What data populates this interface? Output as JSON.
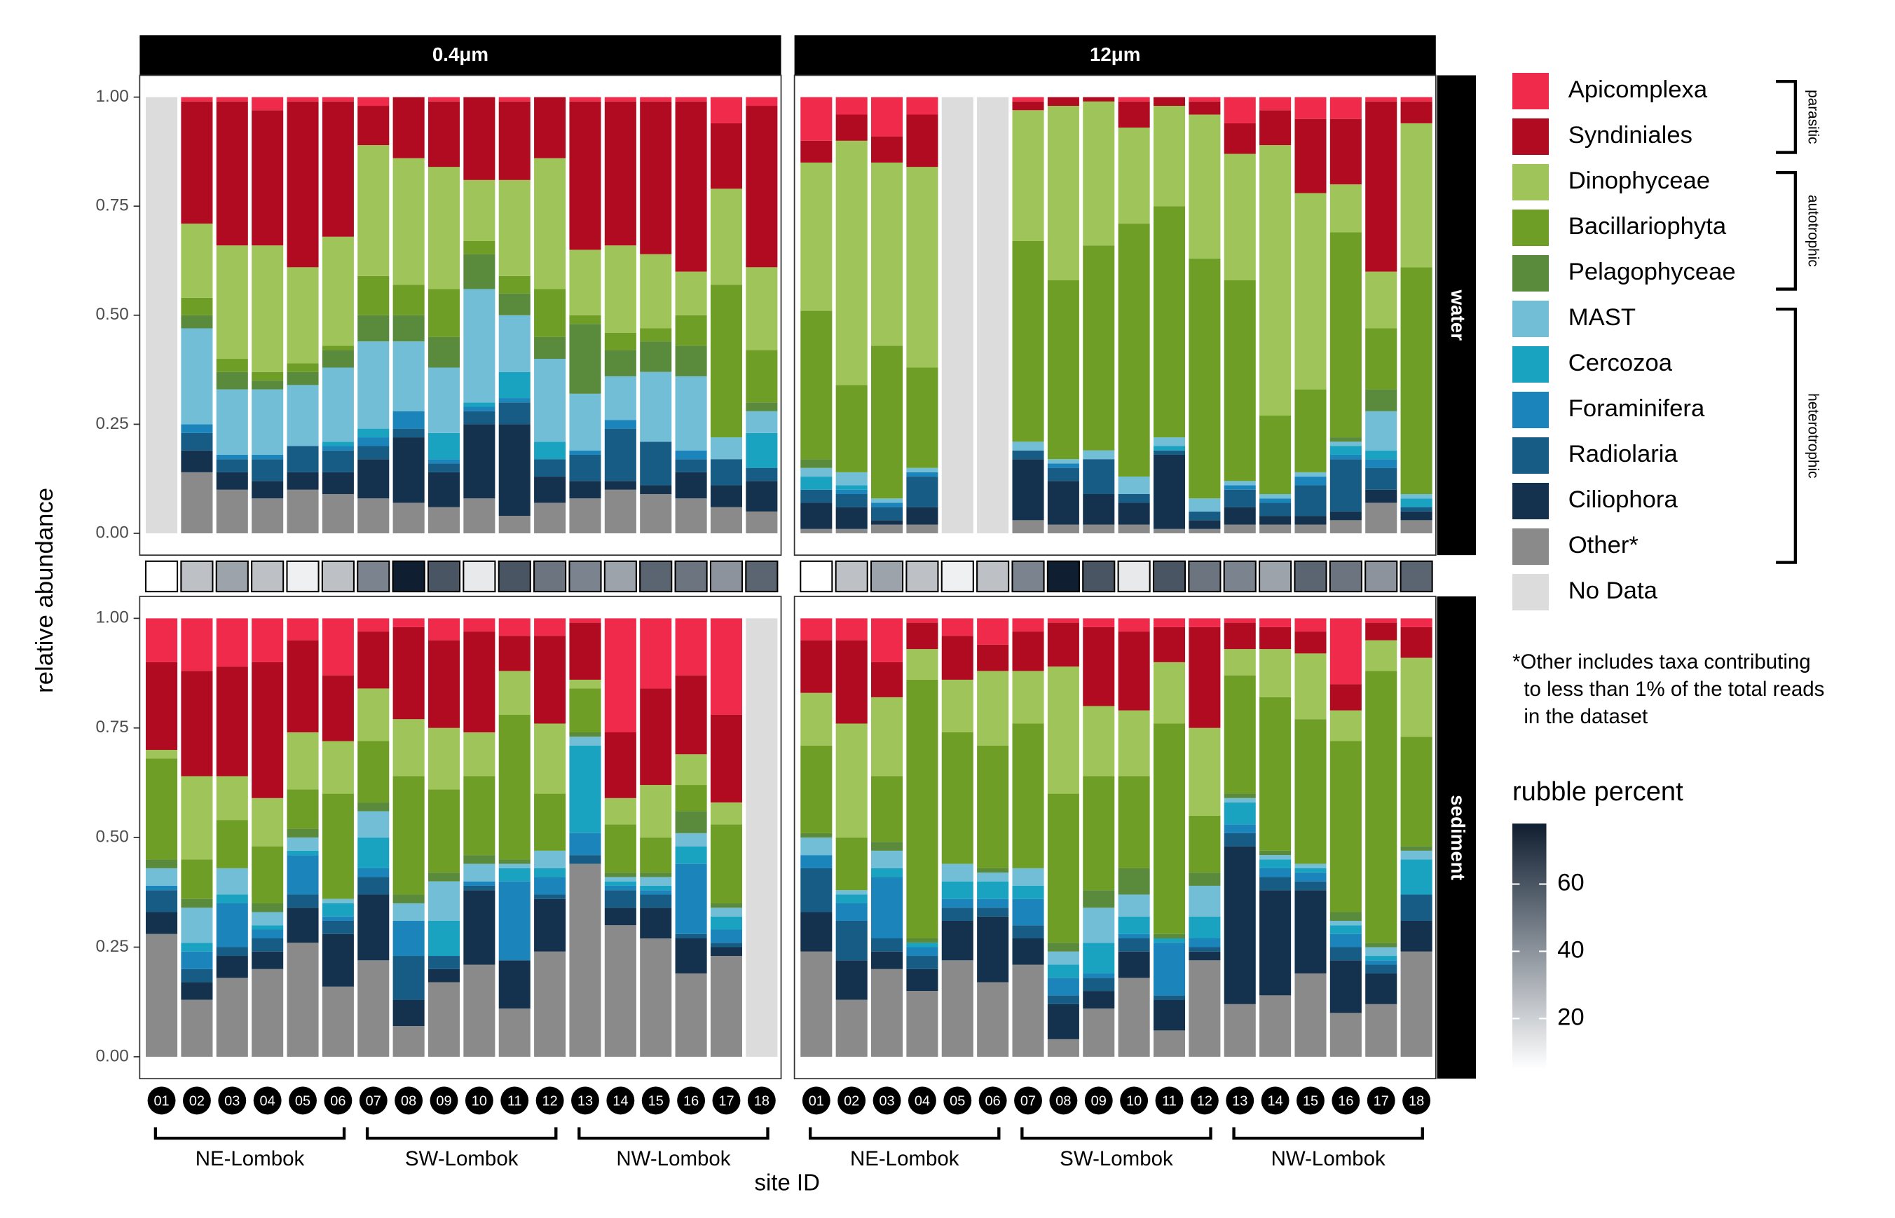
{
  "chart_data": {
    "type": "stacked-bar-facets",
    "y_axis_label": "relative abundance",
    "x_axis_label": "site ID",
    "ylim": [
      -0.05,
      1.05
    ],
    "yticks": [
      {
        "value": 0,
        "label": "0.00"
      },
      0.25,
      {
        "value": 0.5,
        "label": "0.50"
      },
      0.75,
      {
        "value": 1,
        "label": "1.00"
      }
    ],
    "grid": false,
    "columns": [
      "0.4μm",
      "12μm"
    ],
    "rows": [
      "water",
      "sediment"
    ],
    "categories": [
      "01",
      "02",
      "03",
      "04",
      "05",
      "06",
      "07",
      "08",
      "09",
      "10",
      "11",
      "12",
      "13",
      "14",
      "15",
      "16",
      "17",
      "18"
    ],
    "regions": [
      {
        "label": "NE-Lombok",
        "count": 6
      },
      {
        "label": "SW-Lombok",
        "count": 6
      },
      {
        "label": "NW-Lombok",
        "count": 6
      }
    ],
    "series": [
      {
        "name": "Other*",
        "color": "#8a8a8a"
      },
      {
        "name": "Ciliophora",
        "color": "#14324d"
      },
      {
        "name": "Radiolaria",
        "color": "#165c84"
      },
      {
        "name": "Foraminifera",
        "color": "#1b85bb"
      },
      {
        "name": "Cercozoa",
        "color": "#1aa3c0"
      },
      {
        "name": "MAST",
        "color": "#72bed6"
      },
      {
        "name": "Pelagophyceae",
        "color": "#5a8a3c"
      },
      {
        "name": "Bacillariophyta",
        "color": "#6e9e26"
      },
      {
        "name": "Dinophyceae",
        "color": "#9fc55a"
      },
      {
        "name": "Syndiniales",
        "color": "#b00b20"
      },
      {
        "name": "Apicomplexa",
        "color": "#ef2a4a"
      }
    ],
    "no_data": {
      "name": "No Data",
      "color": "#dcdcdc"
    },
    "legend_groups": [
      {
        "label": "parasitic",
        "count": 2
      },
      {
        "label": "autotrophic",
        "count": 3
      },
      {
        "label": "heterotrophic",
        "count": 6
      }
    ],
    "note": [
      "*Other includes taxa contributing",
      "  to less than 1% of the total reads",
      "  in the dataset"
    ],
    "rubble": {
      "title": "rubble percent",
      "lim": [
        5,
        78
      ],
      "ticks": [
        20,
        40,
        60
      ],
      "colors": [
        "#ffffff",
        "#0f1e30"
      ],
      "values": [
        5,
        25,
        35,
        25,
        10,
        25,
        45,
        78,
        60,
        12,
        60,
        50,
        45,
        35,
        55,
        50,
        40,
        55
      ]
    },
    "panels": [
      {
        "values": [
          null,
          [
            0.14,
            0.05,
            0.04,
            0.02,
            0,
            0.22,
            0.03,
            0.04,
            0.17,
            0.28,
            0.01
          ],
          [
            0.1,
            0.04,
            0.03,
            0.01,
            0,
            0.15,
            0.04,
            0.03,
            0.26,
            0.33,
            0.01
          ],
          [
            0.08,
            0.04,
            0.05,
            0.01,
            0,
            0.15,
            0.02,
            0.02,
            0.29,
            0.31,
            0.03
          ],
          [
            0.1,
            0.04,
            0.06,
            0,
            0,
            0.14,
            0.03,
            0.02,
            0.22,
            0.38,
            0.01
          ],
          [
            0.09,
            0.05,
            0.05,
            0.01,
            0.01,
            0.17,
            0.04,
            0.01,
            0.25,
            0.31,
            0.01
          ],
          [
            0.08,
            0.09,
            0.03,
            0.02,
            0.02,
            0.2,
            0.06,
            0.09,
            0.3,
            0.09,
            0.02
          ],
          [
            0.07,
            0.15,
            0.02,
            0.04,
            0,
            0.16,
            0.06,
            0.07,
            0.29,
            0.14,
            0
          ],
          [
            0.06,
            0.08,
            0.02,
            0.01,
            0.06,
            0.15,
            0.07,
            0.11,
            0.28,
            0.15,
            0.01
          ],
          [
            0.08,
            0.17,
            0.03,
            0.01,
            0.01,
            0.26,
            0.08,
            0.03,
            0.14,
            0.19,
            0
          ],
          [
            0.04,
            0.21,
            0.05,
            0.01,
            0.06,
            0.13,
            0.05,
            0.04,
            0.22,
            0.18,
            0.01
          ],
          [
            0.07,
            0.06,
            0.04,
            0,
            0.04,
            0.19,
            0.05,
            0.11,
            0.3,
            0.14,
            0
          ],
          [
            0.08,
            0.04,
            0.06,
            0.01,
            0,
            0.13,
            0.16,
            0.02,
            0.15,
            0.34,
            0.01
          ],
          [
            0.1,
            0.02,
            0.12,
            0.02,
            0,
            0.1,
            0.06,
            0.04,
            0.2,
            0.33,
            0.01
          ],
          [
            0.09,
            0.02,
            0.1,
            0,
            0,
            0.16,
            0.07,
            0.03,
            0.17,
            0.35,
            0.01
          ],
          [
            0.08,
            0.06,
            0.03,
            0.02,
            0,
            0.17,
            0.07,
            0.07,
            0.1,
            0.39,
            0.01
          ],
          [
            0.06,
            0.05,
            0.06,
            0,
            0,
            0.05,
            0,
            0.35,
            0.22,
            0.15,
            0.06
          ],
          [
            0.05,
            0.07,
            0.03,
            0,
            0.08,
            0.05,
            0.02,
            0.12,
            0.19,
            0.37,
            0.02
          ]
        ]
      },
      {
        "values": [
          [
            0.01,
            0.06,
            0.03,
            0,
            0.03,
            0.02,
            0.02,
            0.34,
            0.34,
            0.05,
            0.1
          ],
          [
            0.01,
            0.05,
            0.03,
            0.01,
            0.01,
            0.03,
            0,
            0.2,
            0.56,
            0.06,
            0.04
          ],
          [
            0.02,
            0.01,
            0.03,
            0.01,
            0,
            0.01,
            0,
            0.35,
            0.42,
            0.06,
            0.09
          ],
          [
            0.02,
            0.04,
            0.07,
            0.01,
            0,
            0.01,
            0,
            0.23,
            0.46,
            0.12,
            0.04
          ],
          null,
          null,
          [
            0.03,
            0.14,
            0.02,
            0,
            0,
            0.02,
            0,
            0.46,
            0.3,
            0.02,
            0.01
          ],
          [
            0.02,
            0.1,
            0.03,
            0.01,
            0,
            0.01,
            0,
            0.41,
            0.4,
            0.02,
            0
          ],
          [
            0.02,
            0.07,
            0.08,
            0,
            0,
            0.02,
            0,
            0.47,
            0.33,
            0.01,
            0
          ],
          [
            0.02,
            0.05,
            0.02,
            0,
            0,
            0.04,
            0,
            0.58,
            0.22,
            0.06,
            0.01
          ],
          [
            0.01,
            0.17,
            0.01,
            0,
            0.01,
            0.02,
            0,
            0.53,
            0.23,
            0.02,
            0
          ],
          [
            0.01,
            0.02,
            0.02,
            0,
            0,
            0.03,
            0,
            0.55,
            0.33,
            0.03,
            0.01
          ],
          [
            0.02,
            0.04,
            0.04,
            0.01,
            0,
            0.01,
            0,
            0.46,
            0.29,
            0.07,
            0.06
          ],
          [
            0.02,
            0.02,
            0.03,
            0.01,
            0,
            0.01,
            0,
            0.18,
            0.62,
            0.08,
            0.03
          ],
          [
            0.02,
            0.02,
            0.07,
            0.02,
            0,
            0.01,
            0,
            0.19,
            0.45,
            0.17,
            0.05
          ],
          [
            0.03,
            0.02,
            0.12,
            0.01,
            0.02,
            0.01,
            0.01,
            0.47,
            0.11,
            0.15,
            0.05
          ],
          [
            0.07,
            0.03,
            0.05,
            0.02,
            0.02,
            0.09,
            0.05,
            0.14,
            0.13,
            0.39,
            0.01
          ],
          [
            0.03,
            0.02,
            0.01,
            0,
            0.02,
            0.01,
            0,
            0.52,
            0.33,
            0.05,
            0.01
          ]
        ]
      },
      {
        "values": [
          [
            0.28,
            0.05,
            0.05,
            0.01,
            0,
            0.04,
            0.02,
            0.23,
            0.02,
            0.2,
            0.1
          ],
          [
            0.13,
            0.04,
            0.03,
            0.04,
            0.02,
            0.08,
            0.02,
            0.09,
            0.19,
            0.24,
            0.12
          ],
          [
            0.18,
            0.05,
            0.02,
            0.1,
            0.02,
            0.06,
            0,
            0.11,
            0.1,
            0.25,
            0.11
          ],
          [
            0.2,
            0.04,
            0.03,
            0.02,
            0.01,
            0.03,
            0.02,
            0.13,
            0.11,
            0.31,
            0.1
          ],
          [
            0.26,
            0.08,
            0.03,
            0.09,
            0.01,
            0.03,
            0.02,
            0.09,
            0.13,
            0.21,
            0.05
          ],
          [
            0.16,
            0.12,
            0.03,
            0.01,
            0.03,
            0.01,
            0,
            0.24,
            0.12,
            0.15,
            0.13
          ],
          [
            0.22,
            0.15,
            0.04,
            0.02,
            0.07,
            0.06,
            0.02,
            0.14,
            0.12,
            0.13,
            0.03
          ],
          [
            0.07,
            0.06,
            0.1,
            0.08,
            0,
            0.04,
            0.02,
            0.27,
            0.13,
            0.21,
            0.02
          ],
          [
            0.17,
            0.03,
            0.03,
            0,
            0.08,
            0.09,
            0.02,
            0.19,
            0.14,
            0.2,
            0.05
          ],
          [
            0.21,
            0.17,
            0.01,
            0.01,
            0,
            0.04,
            0.02,
            0.18,
            0.1,
            0.23,
            0.03
          ],
          [
            0.11,
            0.11,
            0,
            0.18,
            0.03,
            0.01,
            0.01,
            0.33,
            0.1,
            0.08,
            0.04
          ],
          [
            0.24,
            0.12,
            0.01,
            0.04,
            0.02,
            0.04,
            0,
            0.13,
            0.16,
            0.2,
            0.04
          ],
          [
            0.44,
            0,
            0.02,
            0.05,
            0.2,
            0.02,
            0.01,
            0.1,
            0.02,
            0.13,
            0.01
          ],
          [
            0.3,
            0.04,
            0.04,
            0.01,
            0.01,
            0.01,
            0.01,
            0.11,
            0.06,
            0.15,
            0.26
          ],
          [
            0.27,
            0.07,
            0.03,
            0.01,
            0.01,
            0.02,
            0.01,
            0.08,
            0.12,
            0.22,
            0.16
          ],
          [
            0.19,
            0.08,
            0.01,
            0.16,
            0.04,
            0.03,
            0.05,
            0.06,
            0.07,
            0.18,
            0.13
          ],
          [
            0.23,
            0.02,
            0.01,
            0.03,
            0.03,
            0.02,
            0.01,
            0.18,
            0.05,
            0.2,
            0.22
          ],
          null
        ]
      },
      {
        "values": [
          [
            0.24,
            0.09,
            0.1,
            0.03,
            0,
            0.04,
            0.01,
            0.2,
            0.12,
            0.12,
            0.05
          ],
          [
            0.13,
            0.09,
            0.09,
            0.04,
            0.02,
            0.01,
            0,
            0.12,
            0.26,
            0.19,
            0.05
          ],
          [
            0.2,
            0.04,
            0.03,
            0.14,
            0.02,
            0.04,
            0.02,
            0.15,
            0.18,
            0.08,
            0.1
          ],
          [
            0.15,
            0.05,
            0.03,
            0.02,
            0.01,
            0,
            0.01,
            0.59,
            0.07,
            0.06,
            0.01
          ],
          [
            0.22,
            0.09,
            0.03,
            0.02,
            0.04,
            0.04,
            0,
            0.3,
            0.12,
            0.1,
            0.04
          ],
          [
            0.17,
            0.15,
            0.02,
            0.02,
            0.04,
            0.02,
            0.01,
            0.28,
            0.17,
            0.06,
            0.06
          ],
          [
            0.21,
            0.06,
            0.03,
            0.06,
            0.03,
            0.04,
            0,
            0.33,
            0.12,
            0.09,
            0.03
          ],
          [
            0.04,
            0.08,
            0.02,
            0.04,
            0.03,
            0.03,
            0.02,
            0.34,
            0.29,
            0.1,
            0.01
          ],
          [
            0.11,
            0.04,
            0.03,
            0.01,
            0.07,
            0.08,
            0.04,
            0.26,
            0.16,
            0.18,
            0.02
          ],
          [
            0.18,
            0.06,
            0.03,
            0.01,
            0.04,
            0.05,
            0.06,
            0.21,
            0.15,
            0.18,
            0.03
          ],
          [
            0.06,
            0.07,
            0.01,
            0.12,
            0.01,
            0,
            0.01,
            0.48,
            0.14,
            0.08,
            0.02
          ],
          [
            0.22,
            0.02,
            0.01,
            0.02,
            0.05,
            0.07,
            0.03,
            0.13,
            0.2,
            0.23,
            0.02
          ],
          [
            0.12,
            0.36,
            0.03,
            0.02,
            0.05,
            0.01,
            0.01,
            0.27,
            0.06,
            0.06,
            0.01
          ],
          [
            0.14,
            0.24,
            0.03,
            0.02,
            0.02,
            0.01,
            0.01,
            0.35,
            0.11,
            0.05,
            0.02
          ],
          [
            0.19,
            0.19,
            0.02,
            0.02,
            0.01,
            0.01,
            0,
            0.33,
            0.15,
            0.05,
            0.03
          ],
          [
            0.1,
            0.12,
            0.03,
            0.03,
            0.02,
            0.01,
            0.02,
            0.39,
            0.07,
            0.06,
            0.15
          ],
          [
            0.12,
            0.07,
            0.02,
            0.01,
            0.01,
            0.02,
            0.01,
            0.62,
            0.07,
            0.04,
            0.01
          ],
          [
            0.24,
            0.07,
            0.06,
            0,
            0.08,
            0.02,
            0.01,
            0.25,
            0.18,
            0.07,
            0.02
          ]
        ]
      }
    ]
  }
}
